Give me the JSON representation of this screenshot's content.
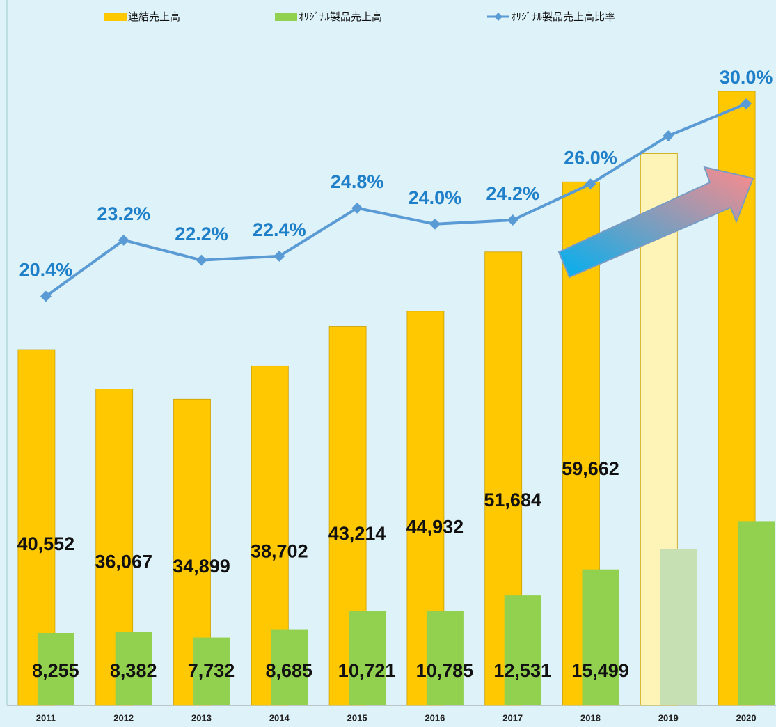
{
  "chart_data": {
    "type": "bar_line",
    "categories": [
      "2011",
      "2012",
      "2013",
      "2014",
      "2015",
      "2016",
      "2017",
      "2018",
      "2019",
      "2020"
    ],
    "series": [
      {
        "name": "連結売上高",
        "color": "#ffc800",
        "colors": [
          "#ffc800",
          "#ffc800",
          "#ffc800",
          "#ffc800",
          "#ffc800",
          "#ffc800",
          "#ffc800",
          "#ffc800",
          "#fff4b8",
          "#ffc800"
        ],
        "values": [
          40552,
          36067,
          34899,
          38702,
          43214,
          44932,
          51684,
          59662,
          62900,
          70000
        ],
        "value_labels": [
          "40,552",
          "36,067",
          "34,899",
          "38,702",
          "43,214",
          "44,932",
          "51,684",
          "59,662",
          null,
          null
        ]
      },
      {
        "name": "ｵﾘｼﾞﾅﾙ製品売上高",
        "color": "#92d050",
        "colors": [
          "#92d050",
          "#92d050",
          "#92d050",
          "#92d050",
          "#92d050",
          "#92d050",
          "#92d050",
          "#92d050",
          "#c6e0b4",
          "#92d050"
        ],
        "values": [
          8255,
          8382,
          7732,
          8685,
          10721,
          10785,
          12531,
          15499,
          17860,
          21000
        ],
        "value_labels": [
          "8,255",
          "8,382",
          "7,732",
          "8,685",
          "10,721",
          "10,785",
          "12,531",
          "15,499",
          null,
          null
        ]
      },
      {
        "name": "ｵﾘｼﾞﾅﾙ製品売上高比率",
        "color": "#5b9bd5",
        "axis": "y2",
        "values": [
          20.4,
          23.2,
          22.2,
          22.4,
          24.8,
          24.0,
          24.2,
          26.0,
          28.4,
          30.0
        ],
        "value_labels": [
          "20.4%",
          "23.2%",
          "22.2%",
          "22.4%",
          "24.8%",
          "24.0%",
          "24.2%",
          "26.0%",
          null,
          "30.0%"
        ]
      }
    ],
    "ylim": [
      0,
      80000
    ],
    "y2lim": [
      0,
      35
    ]
  }
}
